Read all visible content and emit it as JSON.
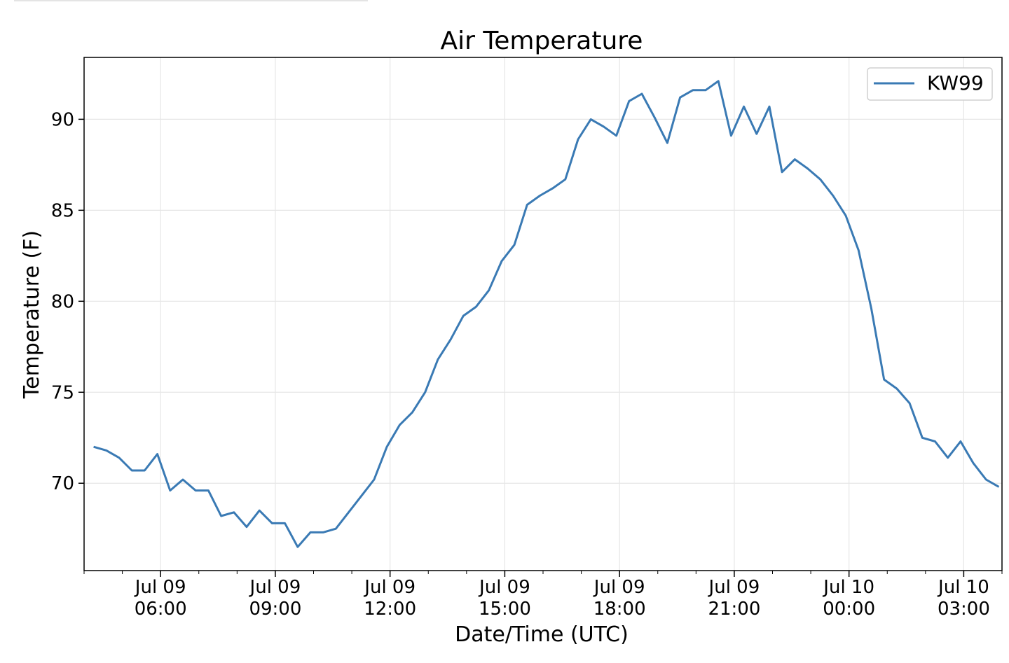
{
  "chart_data": {
    "type": "line",
    "title": "Air Temperature",
    "xlabel": "Date/Time (UTC)",
    "ylabel": "Temperature (F)",
    "grid": true,
    "legend_position": "upper-right",
    "x_range": [
      "2019-07-09T04:00",
      "2019-07-10T04:00"
    ],
    "ylim": [
      65.2,
      93.4
    ],
    "y_ticks": [
      70,
      75,
      80,
      85,
      90
    ],
    "x_ticks": [
      {
        "value": "2019-07-09T06:00",
        "line1": "Jul 09",
        "line2": "06:00"
      },
      {
        "value": "2019-07-09T09:00",
        "line1": "Jul 09",
        "line2": "09:00"
      },
      {
        "value": "2019-07-09T12:00",
        "line1": "Jul 09",
        "line2": "12:00"
      },
      {
        "value": "2019-07-09T15:00",
        "line1": "Jul 09",
        "line2": "15:00"
      },
      {
        "value": "2019-07-09T18:00",
        "line1": "Jul 09",
        "line2": "18:00"
      },
      {
        "value": "2019-07-09T21:00",
        "line1": "Jul 09",
        "line2": "21:00"
      },
      {
        "value": "2019-07-10T00:00",
        "line1": "Jul 10",
        "line2": "00:00"
      },
      {
        "value": "2019-07-10T03:00",
        "line1": "Jul 10",
        "line2": "03:00"
      }
    ],
    "series": [
      {
        "name": "KW99",
        "color": "#3a7ab4",
        "x": [
          "2019-07-09T04:15",
          "2019-07-09T04:35",
          "2019-07-09T04:55",
          "2019-07-09T05:15",
          "2019-07-09T05:35",
          "2019-07-09T05:55",
          "2019-07-09T06:15",
          "2019-07-09T06:35",
          "2019-07-09T06:55",
          "2019-07-09T07:15",
          "2019-07-09T07:35",
          "2019-07-09T07:55",
          "2019-07-09T08:15",
          "2019-07-09T08:35",
          "2019-07-09T08:55",
          "2019-07-09T09:15",
          "2019-07-09T09:35",
          "2019-07-09T09:55",
          "2019-07-09T10:15",
          "2019-07-09T10:35",
          "2019-07-09T10:55",
          "2019-07-09T11:15",
          "2019-07-09T11:35",
          "2019-07-09T11:55",
          "2019-07-09T12:15",
          "2019-07-09T12:35",
          "2019-07-09T12:55",
          "2019-07-09T13:15",
          "2019-07-09T13:35",
          "2019-07-09T13:55",
          "2019-07-09T14:15",
          "2019-07-09T14:35",
          "2019-07-09T14:55",
          "2019-07-09T15:15",
          "2019-07-09T15:35",
          "2019-07-09T15:55",
          "2019-07-09T16:15",
          "2019-07-09T16:35",
          "2019-07-09T16:55",
          "2019-07-09T17:15",
          "2019-07-09T17:35",
          "2019-07-09T17:55",
          "2019-07-09T18:15",
          "2019-07-09T18:35",
          "2019-07-09T18:55",
          "2019-07-09T19:15",
          "2019-07-09T19:35",
          "2019-07-09T19:55",
          "2019-07-09T20:15",
          "2019-07-09T20:35",
          "2019-07-09T20:55",
          "2019-07-09T21:15",
          "2019-07-09T21:35",
          "2019-07-09T21:55",
          "2019-07-09T22:15",
          "2019-07-09T22:35",
          "2019-07-09T22:55",
          "2019-07-09T23:15",
          "2019-07-09T23:35",
          "2019-07-09T23:55",
          "2019-07-10T00:15",
          "2019-07-10T00:35",
          "2019-07-10T00:55",
          "2019-07-10T01:15",
          "2019-07-10T01:35",
          "2019-07-10T01:55",
          "2019-07-10T02:15",
          "2019-07-10T02:35",
          "2019-07-10T02:55",
          "2019-07-10T03:15",
          "2019-07-10T03:35",
          "2019-07-10T03:55"
        ],
        "values": [
          72.0,
          71.8,
          71.4,
          70.7,
          70.7,
          71.6,
          69.6,
          70.2,
          69.6,
          69.6,
          68.2,
          68.4,
          67.6,
          68.5,
          67.8,
          67.8,
          66.5,
          67.3,
          67.3,
          67.5,
          68.4,
          69.3,
          70.2,
          72.0,
          73.2,
          73.9,
          75.0,
          76.8,
          77.9,
          79.2,
          79.7,
          80.6,
          82.2,
          83.1,
          85.3,
          85.8,
          86.2,
          86.7,
          88.9,
          90.0,
          89.6,
          89.1,
          91.0,
          91.4,
          90.1,
          88.7,
          91.2,
          91.6,
          91.6,
          92.1,
          89.1,
          90.7,
          89.2,
          90.7,
          87.1,
          87.8,
          87.3,
          86.7,
          85.8,
          84.7,
          82.8,
          79.6,
          75.7,
          75.2,
          74.4,
          72.5,
          72.3,
          71.4,
          72.3,
          71.1,
          70.2,
          69.8
        ]
      }
    ]
  }
}
